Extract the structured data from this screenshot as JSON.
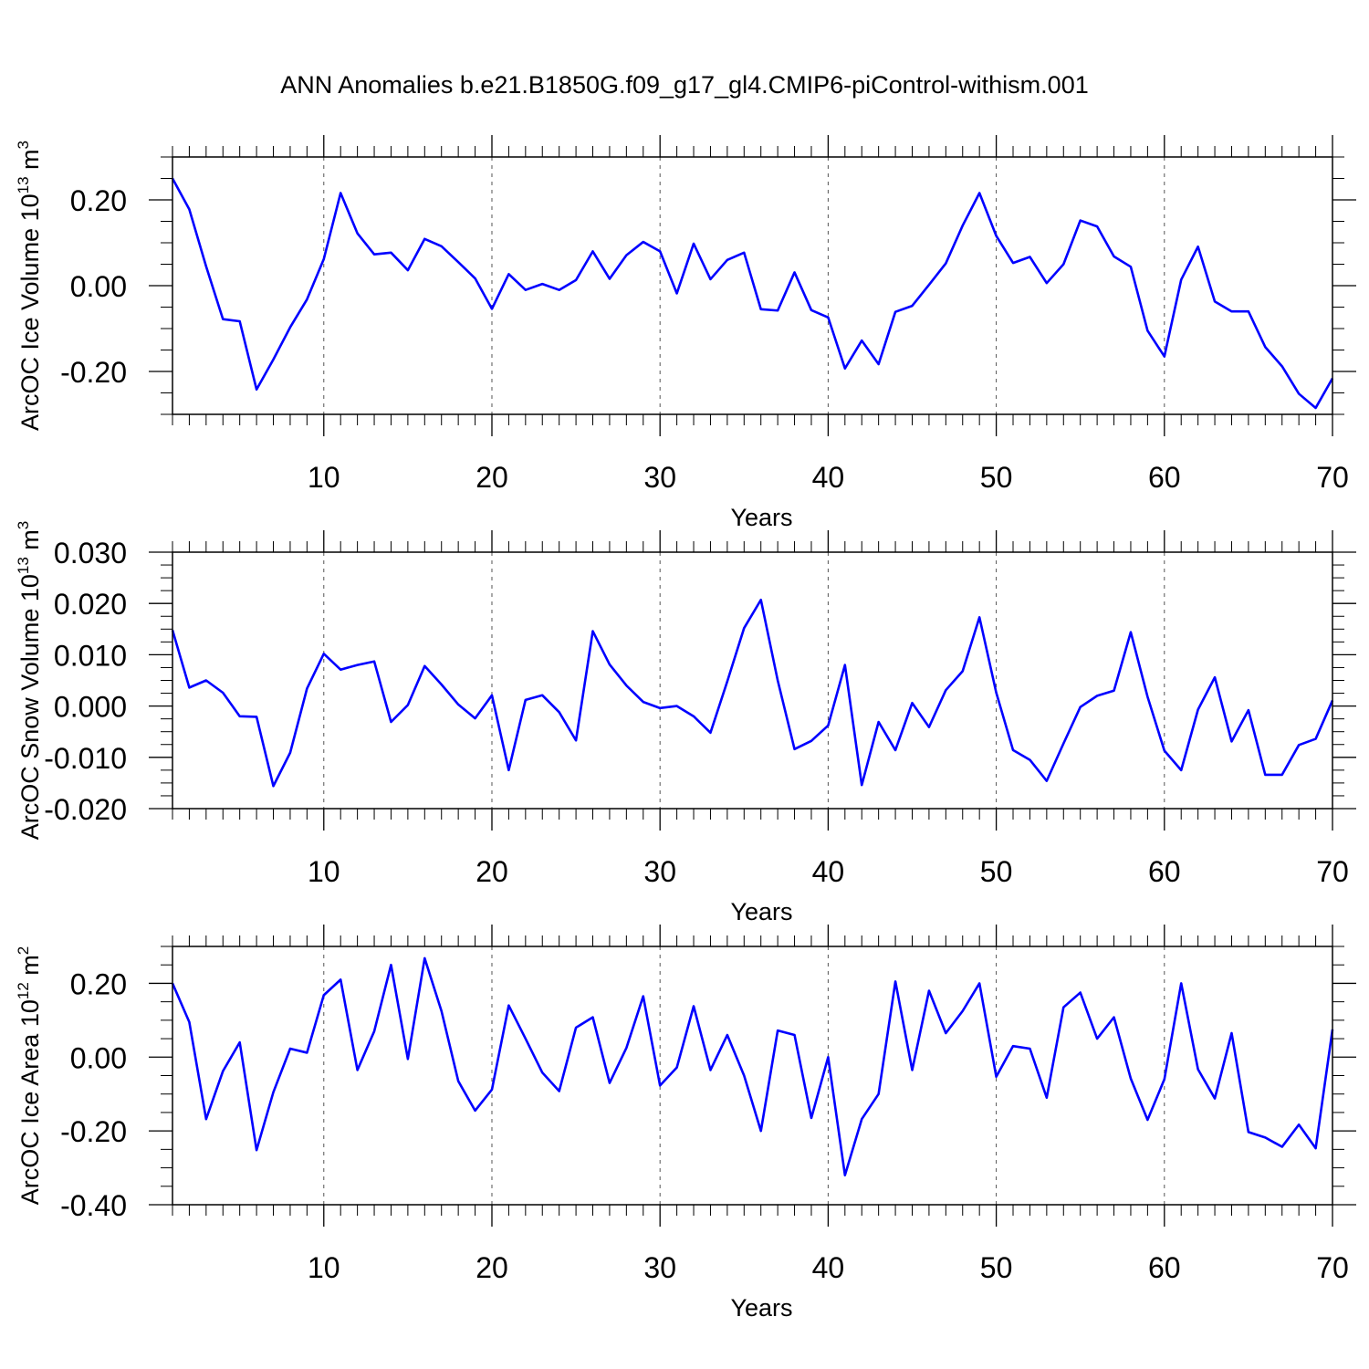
{
  "title": "ANN Anomalies b.e21.B1850G.f09_g17_gl4.CMIP6-piControl-withism.001",
  "chart_data": [
    {
      "type": "line",
      "ylabel_main": "ArcOC Ice Volume 10",
      "ylabel_exp": "13",
      "ylabel_unit": " m",
      "ylabel_unit_exp": "3",
      "xlabel": "Years",
      "xlim": [
        1,
        70
      ],
      "ylim": [
        -0.3,
        0.3
      ],
      "xticks": [
        10,
        20,
        30,
        40,
        50,
        60,
        70
      ],
      "xtick_labels": [
        "10",
        "20",
        "30",
        "40",
        "50",
        "60",
        "70"
      ],
      "yticks": [
        -0.2,
        0.0,
        0.2
      ],
      "ytick_labels": [
        "-0.20",
        "0.00",
        "0.20"
      ],
      "grid_x": [
        10,
        20,
        30,
        40,
        50,
        60
      ],
      "color": "#0000ff",
      "x": [
        1,
        2,
        3,
        4,
        5,
        6,
        7,
        8,
        9,
        10,
        11,
        12,
        13,
        14,
        15,
        16,
        17,
        18,
        19,
        20,
        21,
        22,
        23,
        24,
        25,
        26,
        27,
        28,
        29,
        30,
        31,
        32,
        33,
        34,
        35,
        36,
        37,
        38,
        39,
        40,
        41,
        42,
        43,
        44,
        45,
        46,
        47,
        48,
        49,
        50,
        51,
        52,
        53,
        54,
        55,
        56,
        57,
        58,
        59,
        60,
        61,
        62,
        63,
        64,
        65,
        66,
        67,
        68,
        69,
        70
      ],
      "values": [
        0.25,
        0.178,
        0.045,
        -0.078,
        -0.083,
        -0.242,
        -0.172,
        -0.097,
        -0.032,
        0.062,
        0.216,
        0.122,
        0.073,
        0.077,
        0.036,
        0.109,
        0.092,
        0.055,
        0.017,
        -0.054,
        0.027,
        -0.01,
        0.004,
        -0.01,
        0.013,
        0.08,
        0.016,
        0.071,
        0.102,
        0.08,
        -0.018,
        0.098,
        0.015,
        0.06,
        0.077,
        -0.055,
        -0.058,
        0.031,
        -0.057,
        -0.074,
        -0.193,
        -0.128,
        -0.183,
        -0.061,
        -0.047,
        0.002,
        0.052,
        0.14,
        0.216,
        0.116,
        0.053,
        0.067,
        0.006,
        0.05,
        0.152,
        0.138,
        0.068,
        0.044,
        -0.105,
        -0.165,
        0.014,
        0.091,
        -0.037,
        -0.06,
        -0.06,
        -0.143,
        -0.188,
        -0.252,
        -0.285,
        -0.216
      ]
    },
    {
      "type": "line",
      "ylabel_main": "ArcOC Snow Volume 10",
      "ylabel_exp": "13",
      "ylabel_unit": " m",
      "ylabel_unit_exp": "3",
      "xlabel": "Years",
      "xlim": [
        1,
        70
      ],
      "ylim": [
        -0.02,
        0.03
      ],
      "xticks": [
        10,
        20,
        30,
        40,
        50,
        60,
        70
      ],
      "xtick_labels": [
        "10",
        "20",
        "30",
        "40",
        "50",
        "60",
        "70"
      ],
      "yticks": [
        -0.02,
        -0.01,
        0.0,
        0.01,
        0.02,
        0.03
      ],
      "ytick_labels": [
        "-0.020",
        "-0.010",
        "0.000",
        "0.010",
        "0.020",
        "0.030"
      ],
      "grid_x": [
        10,
        20,
        30,
        40,
        50,
        60
      ],
      "color": "#0000ff",
      "x": [
        1,
        2,
        3,
        4,
        5,
        6,
        7,
        8,
        9,
        10,
        11,
        12,
        13,
        14,
        15,
        16,
        17,
        18,
        19,
        20,
        21,
        22,
        23,
        24,
        25,
        26,
        27,
        28,
        29,
        30,
        31,
        32,
        33,
        34,
        35,
        36,
        37,
        38,
        39,
        40,
        41,
        42,
        43,
        44,
        45,
        46,
        47,
        48,
        49,
        50,
        51,
        52,
        53,
        54,
        55,
        56,
        57,
        58,
        59,
        60,
        61,
        62,
        63,
        64,
        65,
        66,
        67,
        68,
        69,
        70
      ],
      "values": [
        0.0148,
        0.0036,
        0.005,
        0.0026,
        -0.002,
        -0.0021,
        -0.0156,
        -0.0091,
        0.0034,
        0.0102,
        0.0071,
        0.008,
        0.0087,
        -0.0031,
        0.0002,
        0.0078,
        0.0042,
        0.0003,
        -0.0024,
        0.0021,
        -0.0125,
        0.0012,
        0.0021,
        -0.0012,
        -0.0067,
        0.0146,
        0.0081,
        0.004,
        0.0008,
        -0.0004,
        0.0,
        -0.002,
        -0.0052,
        0.0048,
        0.0152,
        0.0207,
        0.005,
        -0.0084,
        -0.0068,
        -0.0038,
        0.008,
        -0.0154,
        -0.0031,
        -0.0086,
        0.0006,
        -0.0041,
        0.0031,
        0.0068,
        0.0173,
        0.0026,
        -0.0086,
        -0.0105,
        -0.0146,
        -0.0073,
        -0.0002,
        0.002,
        0.003,
        0.0144,
        0.0018,
        -0.0087,
        -0.0125,
        -0.0007,
        0.0056,
        -0.0069,
        -0.0008,
        -0.0134,
        -0.0134,
        -0.0076,
        -0.0064,
        0.0011
      ]
    },
    {
      "type": "line",
      "ylabel_main": "ArcOC Ice Area 10",
      "ylabel_exp": "12",
      "ylabel_unit": " m",
      "ylabel_unit_exp": "2",
      "xlabel": "Years",
      "xlim": [
        1,
        70
      ],
      "ylim": [
        -0.4,
        0.3
      ],
      "xticks": [
        10,
        20,
        30,
        40,
        50,
        60,
        70
      ],
      "xtick_labels": [
        "10",
        "20",
        "30",
        "40",
        "50",
        "60",
        "70"
      ],
      "yticks": [
        -0.4,
        -0.2,
        0.0,
        0.2
      ],
      "ytick_labels": [
        "-0.40",
        "-0.20",
        "0.00",
        "0.20"
      ],
      "grid_x": [
        10,
        20,
        30,
        40,
        50,
        60
      ],
      "color": "#0000ff",
      "x": [
        1,
        2,
        3,
        4,
        5,
        6,
        7,
        8,
        9,
        10,
        11,
        12,
        13,
        14,
        15,
        16,
        17,
        18,
        19,
        20,
        21,
        22,
        23,
        24,
        25,
        26,
        27,
        28,
        29,
        30,
        31,
        32,
        33,
        34,
        35,
        36,
        37,
        38,
        39,
        40,
        41,
        42,
        43,
        44,
        45,
        46,
        47,
        48,
        49,
        50,
        51,
        52,
        53,
        54,
        55,
        56,
        57,
        58,
        59,
        60,
        61,
        62,
        63,
        64,
        65,
        66,
        67,
        68,
        69,
        70
      ],
      "values": [
        0.2,
        0.095,
        -0.168,
        -0.038,
        0.04,
        -0.252,
        -0.095,
        0.023,
        0.012,
        0.168,
        0.21,
        -0.035,
        0.07,
        0.25,
        -0.005,
        0.268,
        0.125,
        -0.065,
        -0.145,
        -0.088,
        0.14,
        0.05,
        -0.042,
        -0.092,
        0.08,
        0.108,
        -0.07,
        0.025,
        0.165,
        -0.077,
        -0.028,
        0.138,
        -0.035,
        0.06,
        -0.05,
        -0.2,
        0.072,
        0.06,
        -0.165,
        0.0,
        -0.32,
        -0.168,
        -0.1,
        0.205,
        -0.035,
        0.18,
        0.065,
        0.125,
        0.2,
        -0.053,
        0.03,
        0.023,
        -0.11,
        0.135,
        0.175,
        0.05,
        0.108,
        -0.058,
        -0.17,
        -0.06,
        0.2,
        -0.033,
        -0.112,
        0.065,
        -0.203,
        -0.218,
        -0.243,
        -0.183,
        -0.247,
        0.075
      ]
    }
  ]
}
